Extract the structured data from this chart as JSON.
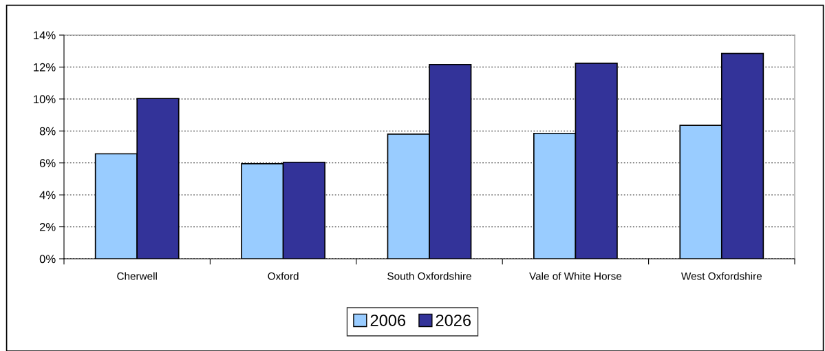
{
  "chart_data": {
    "type": "bar",
    "categories": [
      "Cherwell",
      "Oxford",
      "South Oxfordshire",
      "Vale of White Horse",
      "West Oxfordshire"
    ],
    "series": [
      {
        "name": "2006",
        "color": "#99ccff",
        "values": [
          6.57,
          5.95,
          7.8,
          7.85,
          8.35
        ]
      },
      {
        "name": "2026",
        "color": "#333399",
        "values": [
          10.03,
          6.04,
          12.16,
          12.24,
          12.85
        ]
      }
    ],
    "ylim": [
      0,
      14
    ],
    "yticks": [
      {
        "value": 0,
        "label": "0%"
      },
      {
        "value": 2,
        "label": "2%"
      },
      {
        "value": 4,
        "label": "4%"
      },
      {
        "value": 6,
        "label": "6%"
      },
      {
        "value": 8,
        "label": "8%"
      },
      {
        "value": 10,
        "label": "10%"
      },
      {
        "value": 12,
        "label": "12%"
      },
      {
        "value": 14,
        "label": "14%"
      }
    ],
    "grid": "y",
    "legend": "bottom"
  }
}
